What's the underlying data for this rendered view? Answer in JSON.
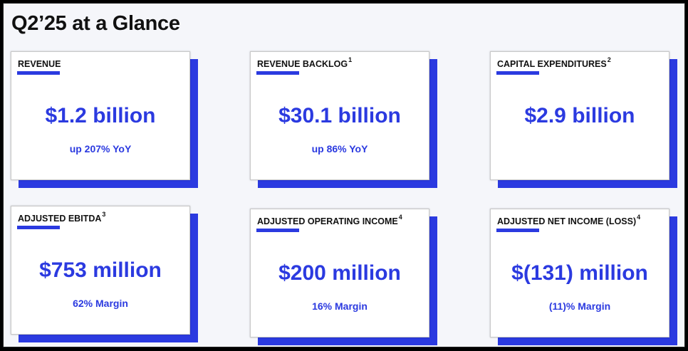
{
  "title": "Q2’25 at a Glance",
  "cards": [
    {
      "label": "REVENUE",
      "footnote": "",
      "value": "$1.2 billion",
      "sub": "up 207% YoY"
    },
    {
      "label": "REVENUE BACKLOG",
      "footnote": "1",
      "value": "$30.1 billion",
      "sub": "up 86% YoY"
    },
    {
      "label": "CAPITAL EXPENDITURES",
      "footnote": "2",
      "value": "$2.9 billion",
      "sub": ""
    },
    {
      "label": "ADJUSTED EBITDA",
      "footnote": "3",
      "value": "$753 million",
      "sub": "62% Margin"
    },
    {
      "label": "ADJUSTED OPERATING INCOME",
      "footnote": "4",
      "value": "$200 million",
      "sub": "16% Margin"
    },
    {
      "label": "ADJUSTED NET INCOME (LOSS)",
      "footnote": "4",
      "value": "$(131) million",
      "sub": "(11)% Margin"
    }
  ],
  "colors": {
    "accent": "#2b3ae0",
    "text": "#111111",
    "background": "#f5f6fa"
  }
}
